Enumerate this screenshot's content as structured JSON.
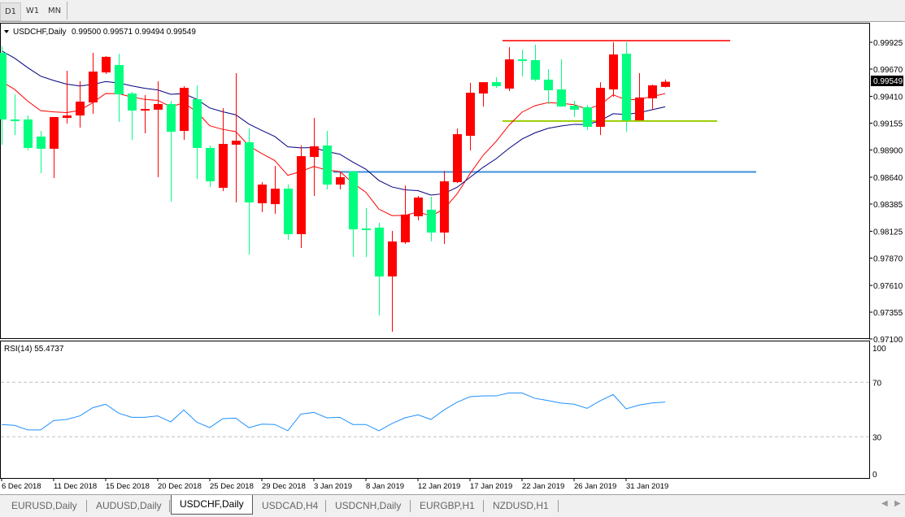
{
  "toolbar": {
    "timeframes": [
      {
        "label": "D1",
        "active": true
      },
      {
        "label": "W1",
        "active": false
      },
      {
        "label": "MN",
        "active": false
      }
    ]
  },
  "chart": {
    "header": {
      "symbol": "USDCHF,Daily",
      "ohlc": "0.99500 0.99571 0.99494 0.99549"
    },
    "current_price": "0.99549",
    "colors": {
      "up_candle": "#ff0000",
      "down_candle": "#00ff7f",
      "ma_fast": "#ff0000",
      "ma_slow": "#000080",
      "resistance": "#ff3b3b",
      "support": "#99cc00",
      "level": "#3c8fdc",
      "rsi": "#1e90ff"
    }
  },
  "chart_data": [
    {
      "type": "candlestick",
      "title": "USDCHF,Daily",
      "ylim": [
        0.971,
        0.99925
      ],
      "price_ticks": [
        "0.99925",
        "0.99670",
        "0.99410",
        "0.99155",
        "0.98900",
        "0.98640",
        "0.98385",
        "0.98125",
        "0.97870",
        "0.97610",
        "0.97355",
        "0.97100"
      ],
      "date_labels": [
        "6 Dec 2018",
        "11 Dec 2018",
        "15 Dec 2018",
        "20 Dec 2018",
        "25 Dec 2018",
        "29 Dec 2018",
        "3 Jan 2019",
        "8 Jan 2019",
        "12 Jan 2019",
        "17 Jan 2019",
        "22 Jan 2019",
        "26 Jan 2019",
        "31 Jan 2019"
      ],
      "ohlc": [
        [
          0.99824,
          0.99886,
          0.9895,
          0.9919
        ],
        [
          0.9919,
          0.99429,
          0.99042,
          0.99182
        ],
        [
          0.9919,
          0.99228,
          0.98895,
          0.98919
        ],
        [
          0.99027,
          0.99081,
          0.98678,
          0.98911
        ],
        [
          0.98911,
          0.99213,
          0.98632,
          0.99213
        ],
        [
          0.99205,
          0.99654,
          0.99151,
          0.99228
        ],
        [
          0.99228,
          0.99553,
          0.99112,
          0.9936
        ],
        [
          0.99352,
          0.99824,
          0.99244,
          0.99646
        ],
        [
          0.99638,
          0.99793,
          0.99623,
          0.99786
        ],
        [
          0.99708,
          0.99816,
          0.99166,
          0.99429
        ],
        [
          0.99437,
          0.99453,
          0.98996,
          0.99275
        ],
        [
          0.99275,
          0.99422,
          0.99058,
          0.9929
        ],
        [
          0.99283,
          0.99553,
          0.9864,
          0.99337
        ],
        [
          0.99337,
          0.99368,
          0.98408,
          0.99073
        ],
        [
          0.99081,
          0.99507,
          0.98996,
          0.99491
        ],
        [
          0.99383,
          0.99515,
          0.98624,
          0.98919
        ],
        [
          0.98919,
          0.98942,
          0.98547,
          0.98601
        ],
        [
          0.98539,
          0.99298,
          0.98508,
          0.98957
        ],
        [
          0.9895,
          0.99631,
          0.984,
          0.98988
        ],
        [
          0.98973,
          0.99104,
          0.97904,
          0.984
        ],
        [
          0.98392,
          0.98593,
          0.98307,
          0.9857
        ],
        [
          0.98384,
          0.98748,
          0.98291,
          0.98531
        ],
        [
          0.98531,
          0.9857,
          0.98044,
          0.98098
        ],
        [
          0.98098,
          0.98942,
          0.97966,
          0.98841
        ],
        [
          0.98833,
          0.99205,
          0.98462,
          0.98934
        ],
        [
          0.98942,
          0.99081,
          0.98524,
          0.9857
        ],
        [
          0.9857,
          0.98694,
          0.98524,
          0.9864
        ],
        [
          0.98694,
          0.98694,
          0.97881,
          0.98144
        ],
        [
          0.98152,
          0.98346,
          0.97881,
          0.98144
        ],
        [
          0.9816,
          0.98206,
          0.97324,
          0.97695
        ],
        [
          0.97695,
          0.98129,
          0.97169,
          0.98028
        ],
        [
          0.9802,
          0.98562,
          0.98005,
          0.98284
        ],
        [
          0.98268,
          0.98462,
          0.98229,
          0.98446
        ],
        [
          0.9833,
          0.98454,
          0.98028,
          0.98113
        ],
        [
          0.98113,
          0.98701,
          0.98005,
          0.98601
        ],
        [
          0.98593,
          0.99104,
          0.98585,
          0.9905
        ],
        [
          0.99034,
          0.99538,
          0.98895,
          0.99445
        ],
        [
          0.99437,
          0.99545,
          0.99313,
          0.99545
        ],
        [
          0.99545,
          0.99592,
          0.99491,
          0.99507
        ],
        [
          0.99484,
          0.99878,
          0.99461,
          0.99762
        ],
        [
          0.99762,
          0.99855,
          0.996,
          0.99755
        ],
        [
          0.99755,
          0.99902,
          0.99553,
          0.99569
        ],
        [
          0.99569,
          0.99669,
          0.99337,
          0.99468
        ],
        [
          0.99476,
          0.99762,
          0.99313,
          0.99313
        ],
        [
          0.99321,
          0.99368,
          0.99213,
          0.99283
        ],
        [
          0.99306,
          0.99329,
          0.99089,
          0.9912
        ],
        [
          0.9912,
          0.99545,
          0.99042,
          0.99491
        ],
        [
          0.99476,
          0.99925,
          0.99406,
          0.99809
        ],
        [
          0.99816,
          0.99925,
          0.99073,
          0.99182
        ],
        [
          0.99182,
          0.99631,
          0.99182,
          0.99399
        ],
        [
          0.99391,
          0.99522,
          0.99283,
          0.99515
        ],
        [
          0.995,
          0.99571,
          0.99494,
          0.99549
        ]
      ],
      "horizontal_lines": [
        {
          "price": 0.9994,
          "color": "#ff3b3b",
          "from_bar": 39,
          "to_bar": 56
        },
        {
          "price": 0.99175,
          "color": "#99cc00",
          "from_bar": 39,
          "to_bar": 55
        },
        {
          "price": 0.9869,
          "color": "#3c8fdc",
          "from_bar": 26,
          "to_bar": 58
        }
      ]
    },
    {
      "type": "line",
      "title": "RSI(14) 55.4737",
      "ylim": [
        0,
        100
      ],
      "ticks": [
        "100",
        "70",
        "30",
        "0"
      ],
      "levels": [
        70,
        30
      ],
      "values": [
        39.0,
        38.4,
        35.0,
        35.0,
        41.9,
        42.7,
        45.3,
        51.3,
        53.9,
        47.3,
        44.3,
        44.3,
        45.3,
        40.9,
        49.7,
        40.7,
        36.7,
        43.3,
        43.7,
        36.7,
        39.3,
        39.0,
        34.4,
        46.7,
        47.9,
        43.9,
        44.3,
        39.0,
        39.0,
        34.4,
        39.7,
        43.9,
        46.1,
        42.7,
        49.7,
        55.3,
        59.4,
        60.0,
        60.0,
        62.2,
        62.2,
        58.2,
        56.6,
        54.7,
        53.9,
        50.9,
        56.4,
        61.0,
        50.5,
        53.3,
        54.8,
        55.5
      ]
    }
  ],
  "symbol_tabs": [
    {
      "label": "EURUSD,Daily",
      "active": false
    },
    {
      "label": "AUDUSD,Daily",
      "active": false
    },
    {
      "label": "USDCHF,Daily",
      "active": true
    },
    {
      "label": "USDCAD,H4",
      "active": false
    },
    {
      "label": "USDCNH,Daily",
      "active": false
    },
    {
      "label": "EURGBP,H1",
      "active": false
    },
    {
      "label": "NZDUSD,H1",
      "active": false
    }
  ]
}
